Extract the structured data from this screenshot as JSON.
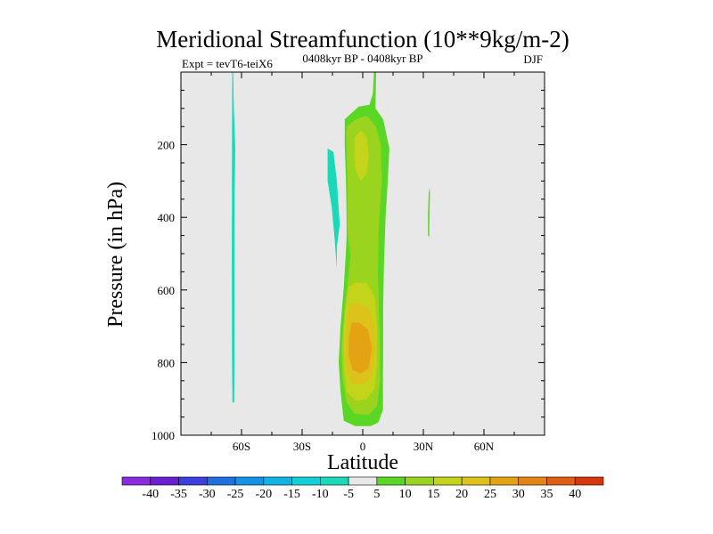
{
  "chart_data": {
    "type": "filled-contour",
    "title": "Meridional Streamfunction (10**9kg/m-2)",
    "left_subtitle": "Expt = tevT6-teiX6",
    "center_subtitle": "0408kyr BP - 0408kyr BP",
    "right_subtitle": "DJF",
    "xlabel": "Latitude",
    "ylabel": "Pressure (in hPa)",
    "xlim": [
      -90,
      90
    ],
    "ylim": [
      1000,
      0
    ],
    "x_ticks": [
      {
        "value": -60,
        "label": "60S"
      },
      {
        "value": -30,
        "label": "30S"
      },
      {
        "value": 0,
        "label": "0"
      },
      {
        "value": 30,
        "label": "30N"
      },
      {
        "value": 60,
        "label": "60N"
      }
    ],
    "y_ticks": [
      {
        "value": 200,
        "label": "200"
      },
      {
        "value": 400,
        "label": "400"
      },
      {
        "value": 600,
        "label": "600"
      },
      {
        "value": 800,
        "label": "800"
      },
      {
        "value": 1000,
        "label": "1000"
      }
    ],
    "contour_levels": [
      -40,
      -35,
      -30,
      -25,
      -20,
      -15,
      -10,
      -5,
      5,
      10,
      15,
      20,
      25,
      30,
      35,
      40
    ],
    "colorbar_labels": [
      "-40",
      "-35",
      "-30",
      "-25",
      "-20",
      "-15",
      "-10",
      "-5",
      "5",
      "10",
      "15",
      "20",
      "25",
      "30",
      "35",
      "40"
    ],
    "colorbar_colors": [
      "#8a2be2",
      "#6a1fd0",
      "#3d3de0",
      "#1f6fe0",
      "#1592e6",
      "#10b3e3",
      "#12cfd8",
      "#1ad9b8",
      "#e8e8e8",
      "#5ad624",
      "#9ad41e",
      "#c4d41a",
      "#dcc21a",
      "#e3a313",
      "#e38414",
      "#e05e14",
      "#d8360f"
    ],
    "regions": [
      {
        "name": "sh-polar-negative-band",
        "level": -10,
        "polygon": [
          [
            -64.6,
            0
          ],
          [
            -64.1,
            0
          ],
          [
            -63.9,
            80
          ],
          [
            -63.1,
            210
          ],
          [
            -63.4,
            330
          ],
          [
            -63.5,
            780
          ],
          [
            -63.6,
            910
          ],
          [
            -64.5,
            910
          ],
          [
            -64.7,
            780
          ],
          [
            -64.8,
            500
          ],
          [
            -64.7,
            200
          ]
        ]
      },
      {
        "name": "sh-subtropical-negative",
        "level": -10,
        "polygon": [
          [
            -17.4,
            210
          ],
          [
            -14.5,
            220
          ],
          [
            -12.8,
            300
          ],
          [
            -11.4,
            420
          ],
          [
            -12.8,
            480
          ],
          [
            -12.9,
            540
          ],
          [
            -13.9,
            460
          ],
          [
            -15.4,
            370
          ],
          [
            -17.4,
            300
          ]
        ]
      },
      {
        "name": "nh-subtropical-positive",
        "level": 5,
        "polygon": [
          [
            32.9,
            320
          ],
          [
            33.3,
            330
          ],
          [
            33.1,
            380
          ],
          [
            32.9,
            455
          ],
          [
            32.3,
            450
          ],
          [
            32.3,
            390
          ],
          [
            32.6,
            340
          ]
        ]
      },
      {
        "name": "equatorial-cell-outer",
        "level": 5,
        "polygon": [
          [
            5.5,
            0
          ],
          [
            6.6,
            0
          ],
          [
            6.3,
            100
          ],
          [
            10.1,
            130
          ],
          [
            13.2,
            210
          ],
          [
            12.4,
            300
          ],
          [
            11.3,
            400
          ],
          [
            10.5,
            530
          ],
          [
            10.1,
            650
          ],
          [
            10.1,
            750
          ],
          [
            10.0,
            850
          ],
          [
            10.0,
            930
          ],
          [
            7.7,
            965
          ],
          [
            4.0,
            975
          ],
          [
            -3.8,
            975
          ],
          [
            -9.4,
            960
          ],
          [
            -11.0,
            880
          ],
          [
            -11.9,
            800
          ],
          [
            -11.0,
            700
          ],
          [
            -9.5,
            600
          ],
          [
            -8.4,
            500
          ],
          [
            -8.0,
            450
          ],
          [
            -8.0,
            400
          ],
          [
            -8.3,
            300
          ],
          [
            -8.9,
            200
          ],
          [
            -8.9,
            130
          ],
          [
            -2.0,
            95
          ],
          [
            3.3,
            90
          ],
          [
            5.0,
            60
          ]
        ]
      },
      {
        "name": "equatorial-cell-10",
        "level": 10,
        "polygon": [
          [
            -7.8,
            150
          ],
          [
            -3.5,
            130
          ],
          [
            2.0,
            120
          ],
          [
            6.5,
            150
          ],
          [
            9.0,
            200
          ],
          [
            9.5,
            300
          ],
          [
            8.0,
            420
          ],
          [
            7.5,
            550
          ],
          [
            8.0,
            650
          ],
          [
            8.5,
            750
          ],
          [
            8.5,
            850
          ],
          [
            7.0,
            920
          ],
          [
            2.5,
            945
          ],
          [
            -4.0,
            940
          ],
          [
            -8.0,
            910
          ],
          [
            -10.0,
            840
          ],
          [
            -10.5,
            760
          ],
          [
            -9.0,
            650
          ],
          [
            -7.0,
            560
          ],
          [
            -6.0,
            500
          ],
          [
            -6.2,
            420
          ],
          [
            -6.8,
            300
          ],
          [
            -7.5,
            200
          ]
        ]
      },
      {
        "name": "equatorial-cell-15",
        "level": 15,
        "polygon": [
          [
            -7.0,
            590
          ],
          [
            -3.5,
            580
          ],
          [
            2.0,
            580
          ],
          [
            6.0,
            620
          ],
          [
            7.0,
            700
          ],
          [
            7.0,
            800
          ],
          [
            6.0,
            870
          ],
          [
            2.0,
            900
          ],
          [
            -3.5,
            905
          ],
          [
            -8.0,
            880
          ],
          [
            -9.5,
            800
          ],
          [
            -9.5,
            720
          ],
          [
            -8.5,
            650
          ]
        ]
      },
      {
        "name": "equatorial-cell-20",
        "level": 20,
        "polygon": [
          [
            -6.5,
            640
          ],
          [
            -2.5,
            635
          ],
          [
            3.0,
            650
          ],
          [
            6.0,
            700
          ],
          [
            6.0,
            790
          ],
          [
            4.5,
            840
          ],
          [
            0.5,
            860
          ],
          [
            -4.5,
            860
          ],
          [
            -8.0,
            830
          ],
          [
            -8.5,
            760
          ],
          [
            -8.0,
            690
          ]
        ]
      },
      {
        "name": "equatorial-cell-25",
        "level": 25,
        "polygon": [
          [
            -5.5,
            690
          ],
          [
            -1.5,
            690
          ],
          [
            2.5,
            710
          ],
          [
            4.5,
            760
          ],
          [
            3.0,
            815
          ],
          [
            -1.0,
            830
          ],
          [
            -5.0,
            820
          ],
          [
            -7.0,
            780
          ],
          [
            -6.8,
            730
          ]
        ]
      },
      {
        "name": "upper-cell-15-core",
        "level": 15,
        "polygon": [
          [
            -4.0,
            180
          ],
          [
            -1.0,
            160
          ],
          [
            2.0,
            180
          ],
          [
            3.0,
            230
          ],
          [
            2.0,
            280
          ],
          [
            -1.0,
            300
          ],
          [
            -3.5,
            270
          ],
          [
            -4.5,
            220
          ]
        ]
      },
      {
        "name": "upper-cell-10-left",
        "level": 10,
        "polygon": [
          [
            -8.2,
            160
          ],
          [
            -5.0,
            150
          ],
          [
            -4.0,
            200
          ],
          [
            -4.5,
            300
          ],
          [
            -5.5,
            400
          ],
          [
            -6.5,
            500
          ],
          [
            -7.5,
            440
          ],
          [
            -7.6,
            300
          ],
          [
            -8.0,
            220
          ]
        ]
      }
    ]
  }
}
